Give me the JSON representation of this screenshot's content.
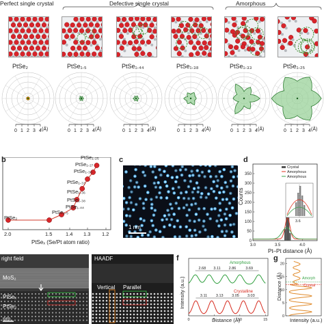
{
  "panel_a": {
    "group_labels": [
      "Perfect single crystal",
      "Defective single crystal",
      "Amorphous"
    ],
    "phases": [
      "PtSe2",
      "PtSe1.5",
      "PtSe1.44",
      "PtSe1.38",
      "PtSe1.33",
      "PtSe1.25"
    ],
    "phase_display": [
      "PtSe₂",
      "PtSe₁.₅",
      "PtSe₁.₄₄",
      "PtSe₁.₃₈",
      "PtSe₁.₃₃",
      "PtSe₁.₂₅"
    ],
    "radial_ticks": [
      "0",
      "1",
      "2",
      "3",
      "4"
    ],
    "radial_unit": "(Å)"
  },
  "panel_b": {
    "xlabel": "PtSeₓ (Se/Pt atom ratio)",
    "x_ticks": [
      "2.0",
      "1.5",
      "1.4",
      "1.3",
      "1.2"
    ],
    "point_labels": [
      "PtSe₂",
      "PtSe₁.₅",
      "PtSe₁.₄₄",
      "PtSe₁.₃₈",
      "PtSe₁.₃₆",
      "PtSe₁.₃₃",
      "PtSe₁.₃₀",
      "PtSe₁.₂₇",
      "PtSe₁.₂₅"
    ]
  },
  "panel_c": {
    "scale_label": "1 nm"
  },
  "panel_d": {
    "ylabel": "Counts",
    "xlabel": "Pt–Pt distance (Å)",
    "y_ticks": [
      "0",
      "50",
      "100",
      "150",
      "200",
      "250",
      "300",
      "350"
    ],
    "x_ticks": [
      "3.0",
      "3.5",
      "4.0"
    ],
    "legend": [
      "Crystal",
      "Amorphous",
      "Amorphous"
    ],
    "inset_label": "3.6",
    "colors": {
      "crystal": "#555555",
      "amorphous_red": "#e0301e",
      "amorphous_green": "#3aa04a"
    }
  },
  "panel_e": {
    "left_title": "right field",
    "right_title": "HAADF",
    "mos2": "MoS₂",
    "ptse_top": "PtSeₓ",
    "ptse_bot": "PtSe₂",
    "scale": "nm",
    "vertical": "Vertical",
    "parallel": "Parallel"
  },
  "panel_f": {
    "ylabel": "Intensity (a.u.)",
    "xlabel": "Distance (Å)",
    "x_ticks": [
      "0",
      "5",
      "10",
      "15"
    ],
    "amorphous_label": "Amorphous",
    "crystalline_label": "Crystalline",
    "amorphous_spacings": [
      "2.68",
      "3.11",
      "2.86",
      "3.69"
    ],
    "crystalline_spacings": [
      "3.11",
      "3.13",
      "3.05",
      "3.03"
    ],
    "colors": {
      "amorphous": "#2e9e3c",
      "crystalline": "#d62a1e"
    }
  },
  "panel_g": {
    "ylabel": "Distance (Å)",
    "xlabel": "Intensity (a.u.)",
    "y_ticks": [
      "0",
      "5",
      "10",
      "15",
      "20"
    ],
    "amorphous_label": "Amorph",
    "crystalline_label": "Crystal",
    "colors": {
      "line": "#e08a2a"
    }
  },
  "panel_letters": [
    "b",
    "c",
    "d",
    "f",
    "g"
  ]
}
